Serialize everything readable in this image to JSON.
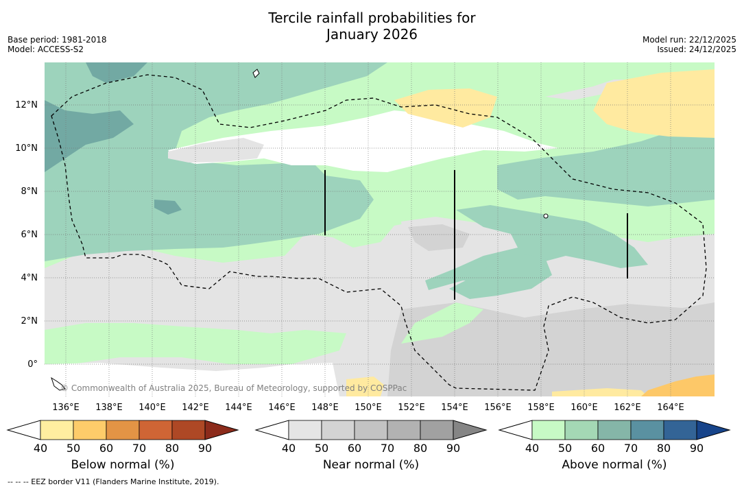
{
  "title_line1": "Tercile rainfall probabilities for",
  "title_line2": "January 2026",
  "base_period": "Base period: 1981-2018",
  "model": "Model: ACCESS-S2",
  "model_run": "Model run: 22/12/2025",
  "issued": "Issued: 24/12/2025",
  "credit": "© Commonwealth of Australia 2025, Bureau of Meteorology, supported by COSPPac",
  "footnote": "--  --  -- EEZ border V11 (Flanders Marine Institute, 2019).",
  "lat_labels": [
    "12°N",
    "10°N",
    "8°N",
    "6°N",
    "4°N",
    "2°N",
    "0°"
  ],
  "lon_labels": [
    "136°E",
    "138°E",
    "140°E",
    "142°E",
    "144°E",
    "146°E",
    "148°E",
    "150°E",
    "152°E",
    "154°E",
    "156°E",
    "158°E",
    "160°E",
    "162°E",
    "164°E"
  ],
  "colorbars": [
    {
      "label": "Below normal (%)",
      "ticks": [
        "40",
        "50",
        "60",
        "70",
        "80",
        "90"
      ],
      "colors": [
        "#ffeea0",
        "#fdcc6a",
        "#e39445",
        "#cf6535",
        "#ae4825",
        "#8c2b1b"
      ]
    },
    {
      "label": "Near normal (%)",
      "ticks": [
        "40",
        "50",
        "60",
        "70",
        "80",
        "90"
      ],
      "colors": [
        "#e5e5e5",
        "#d3d3d3",
        "#c3c3c3",
        "#b2b2b2",
        "#a1a1a1",
        "#858585"
      ]
    },
    {
      "label": "Above normal (%)",
      "ticks": [
        "40",
        "50",
        "60",
        "70",
        "80",
        "90"
      ],
      "colors": [
        "#c7fac5",
        "#a4d8b5",
        "#85b6a8",
        "#5a91a1",
        "#336496",
        "#17448a"
      ]
    }
  ],
  "colors": {
    "above_40": "#c7fac5",
    "above_50": "#9dd3bc",
    "above_60": "#72a9a3",
    "near_40": "#e4e4e4",
    "near_50": "#d3d3d3",
    "below_40": "#ffeaa0",
    "below_50": "#fdc868"
  }
}
